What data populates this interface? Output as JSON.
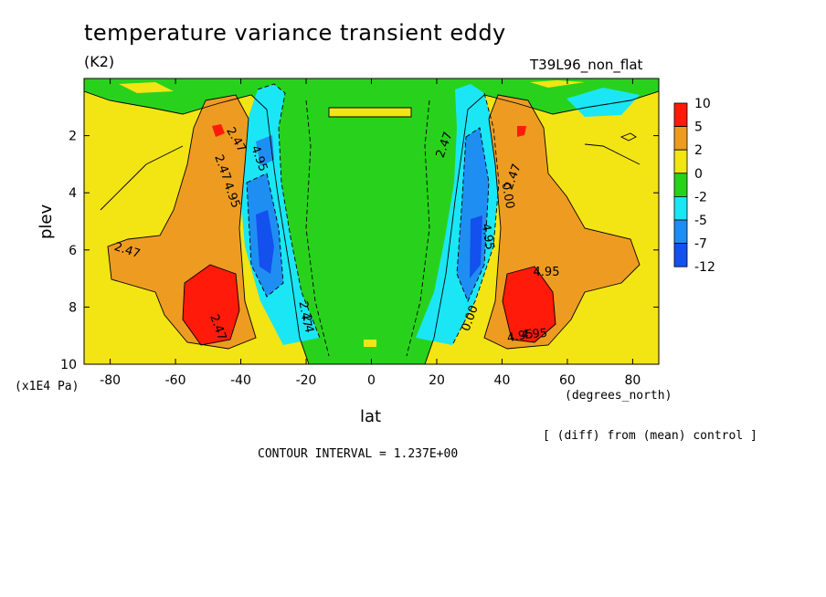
{
  "chart_data": {
    "type": "heatmap",
    "title": "temperature variance transient eddy",
    "units": "(K2)",
    "run_label": "T39L96_non_flat",
    "xlabel": "lat",
    "x_unit": "(degrees_north)",
    "ylabel": "plev",
    "y_unit": "(x1E4 Pa)",
    "xlim": [
      -88,
      88
    ],
    "ylim": [
      10,
      0
    ],
    "x_ticks": [
      -80,
      -60,
      -40,
      -20,
      0,
      20,
      40,
      60,
      80
    ],
    "y_ticks": [
      2,
      4,
      6,
      8,
      10
    ],
    "colorbar_levels": [
      "10",
      "5",
      "2",
      "0",
      "-2",
      "-5",
      "-7",
      "-12"
    ],
    "colorbar_colors": [
      "#ff1a0a",
      "#ee9b22",
      "#f3e414",
      "#28d21c",
      "#1ae6f6",
      "#1f8ef3",
      "#1350ee"
    ],
    "contour_labels": [
      "2.47",
      "4.95",
      "2.47",
      "4.95",
      "2.47",
      "4.95",
      "2.47",
      "4.95",
      "2.47",
      "2.47",
      "2.47",
      "0.00",
      "2.4",
      "4.95",
      "4.95",
      "0.00"
    ],
    "contour_interval": "CONTOUR INTERVAL = 1.237E+00",
    "note": "[ (diff) from (mean) control ]"
  }
}
